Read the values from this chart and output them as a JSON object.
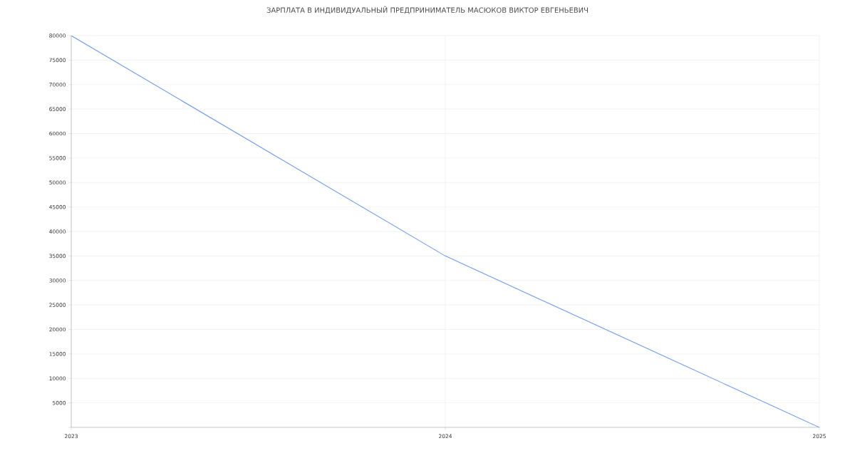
{
  "chart_data": {
    "type": "line",
    "title": "ЗАРПЛАТА В ИНДИВИДУАЛЬНЫЙ ПРЕДПРИНИМАТЕЛЬ МАСЮКОВ ВИКТОР ЕВГЕНЬЕВИЧ",
    "x": [
      2023,
      2024,
      2025
    ],
    "values": [
      80000,
      35000,
      0
    ],
    "color": "#6f9cf5",
    "xlim": [
      2023,
      2025
    ],
    "xticks": [
      2023,
      2024,
      2025
    ],
    "ylim": [
      0,
      80000
    ],
    "yticks": [
      {
        "value": 0,
        "label": null
      },
      5000,
      10000,
      15000,
      20000,
      25000,
      30000,
      35000,
      40000,
      45000,
      50000,
      55000,
      60000,
      65000,
      70000,
      75000,
      80000
    ],
    "grid": true
  }
}
